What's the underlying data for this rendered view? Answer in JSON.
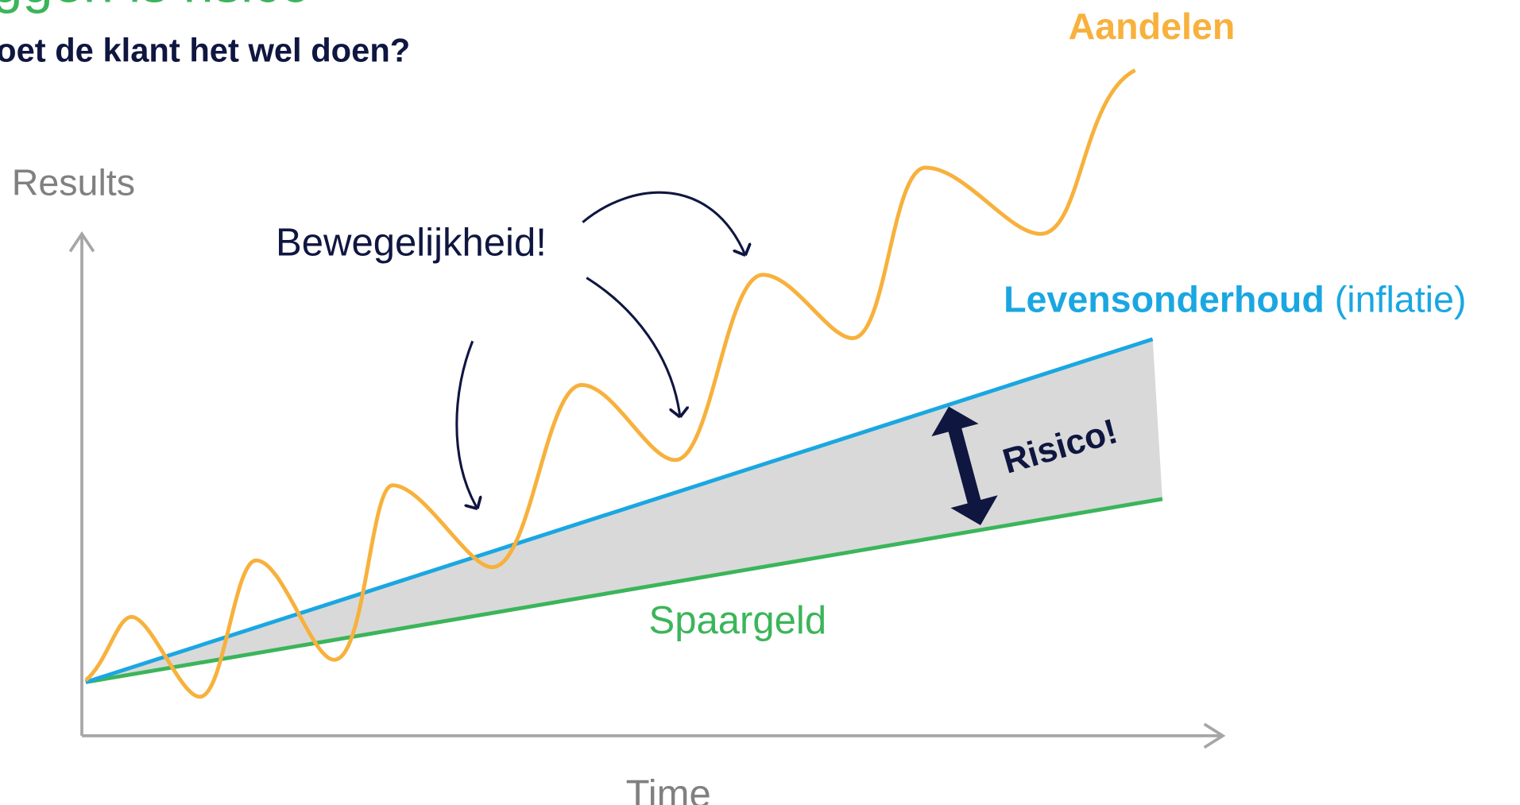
{
  "header": {
    "title": "ggen is risico",
    "subtitle": "oet de klant het wel doen?"
  },
  "axes": {
    "y_label": "Results",
    "x_label": "Time"
  },
  "annotations": {
    "volatility": "Bewegelijkheid!",
    "risk": "Risico!"
  },
  "lines": {
    "stocks": "Aandelen",
    "cost_of_living": "Levensonderhoud",
    "cost_of_living_note": "(inflatie)",
    "savings": "Spaargeld"
  }
}
